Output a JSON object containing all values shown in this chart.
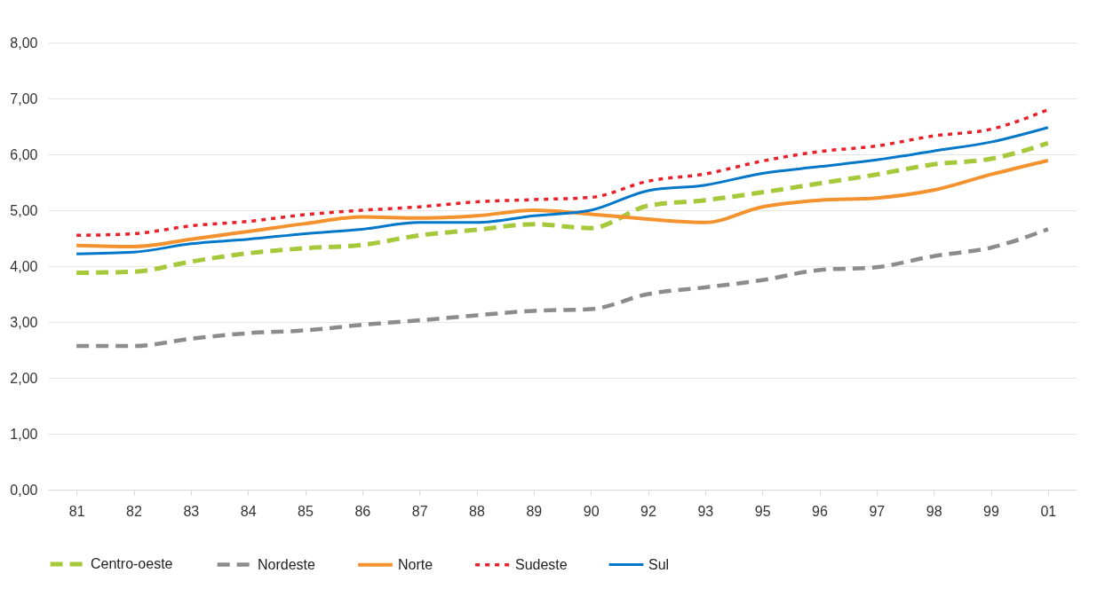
{
  "chart_data": {
    "type": "line",
    "categories": [
      "81",
      "82",
      "83",
      "84",
      "85",
      "86",
      "87",
      "88",
      "89",
      "90",
      "92",
      "93",
      "95",
      "96",
      "97",
      "98",
      "99",
      "01"
    ],
    "ylim": [
      0,
      8
    ],
    "yticks": [
      {
        "value": 0,
        "label": "0,00"
      },
      {
        "value": 1,
        "label": "1,00"
      },
      {
        "value": 2,
        "label": "2,00"
      },
      {
        "value": 3,
        "label": "3,00"
      },
      {
        "value": 4,
        "label": "4,00"
      },
      {
        "value": 5,
        "label": "5,00"
      },
      {
        "value": 6,
        "label": "6,00"
      },
      {
        "value": 7,
        "label": "7,00"
      },
      {
        "value": 8,
        "label": "8,00"
      }
    ],
    "grid": "y",
    "legend": "bottom",
    "marker": "none",
    "series": [
      {
        "name": "Centro-oeste",
        "color": "#a5c93a",
        "line_style": "dashed",
        "values": [
          3.88,
          3.9,
          4.08,
          4.23,
          4.32,
          4.38,
          4.55,
          4.65,
          4.75,
          4.68,
          5.08,
          5.18,
          5.32,
          5.48,
          5.64,
          5.82,
          5.92,
          6.2
        ]
      },
      {
        "name": "Nordeste",
        "color": "#8c8c8c",
        "line_style": "dashed",
        "values": [
          2.57,
          2.57,
          2.7,
          2.8,
          2.85,
          2.95,
          3.03,
          3.12,
          3.2,
          3.23,
          3.5,
          3.62,
          3.75,
          3.93,
          3.98,
          4.18,
          4.33,
          4.66
        ]
      },
      {
        "name": "Norte",
        "color": "#f3922e",
        "line_style": "solid",
        "values": [
          4.37,
          4.35,
          4.48,
          4.62,
          4.76,
          4.88,
          4.86,
          4.9,
          5.0,
          4.93,
          4.84,
          4.78,
          5.06,
          5.18,
          5.22,
          5.36,
          5.64,
          5.89
        ]
      },
      {
        "name": "Sudeste",
        "color": "#e8202a",
        "line_style": "dotted",
        "values": [
          4.55,
          4.58,
          4.72,
          4.8,
          4.92,
          5.0,
          5.06,
          5.15,
          5.19,
          5.23,
          5.52,
          5.65,
          5.88,
          6.05,
          6.15,
          6.33,
          6.45,
          6.8
        ]
      },
      {
        "name": "Sul",
        "color": "#0077c8",
        "line_style": "solid",
        "values": [
          4.22,
          4.25,
          4.4,
          4.48,
          4.58,
          4.66,
          4.78,
          4.78,
          4.9,
          5.0,
          5.35,
          5.45,
          5.66,
          5.78,
          5.9,
          6.06,
          6.22,
          6.48
        ]
      }
    ]
  }
}
